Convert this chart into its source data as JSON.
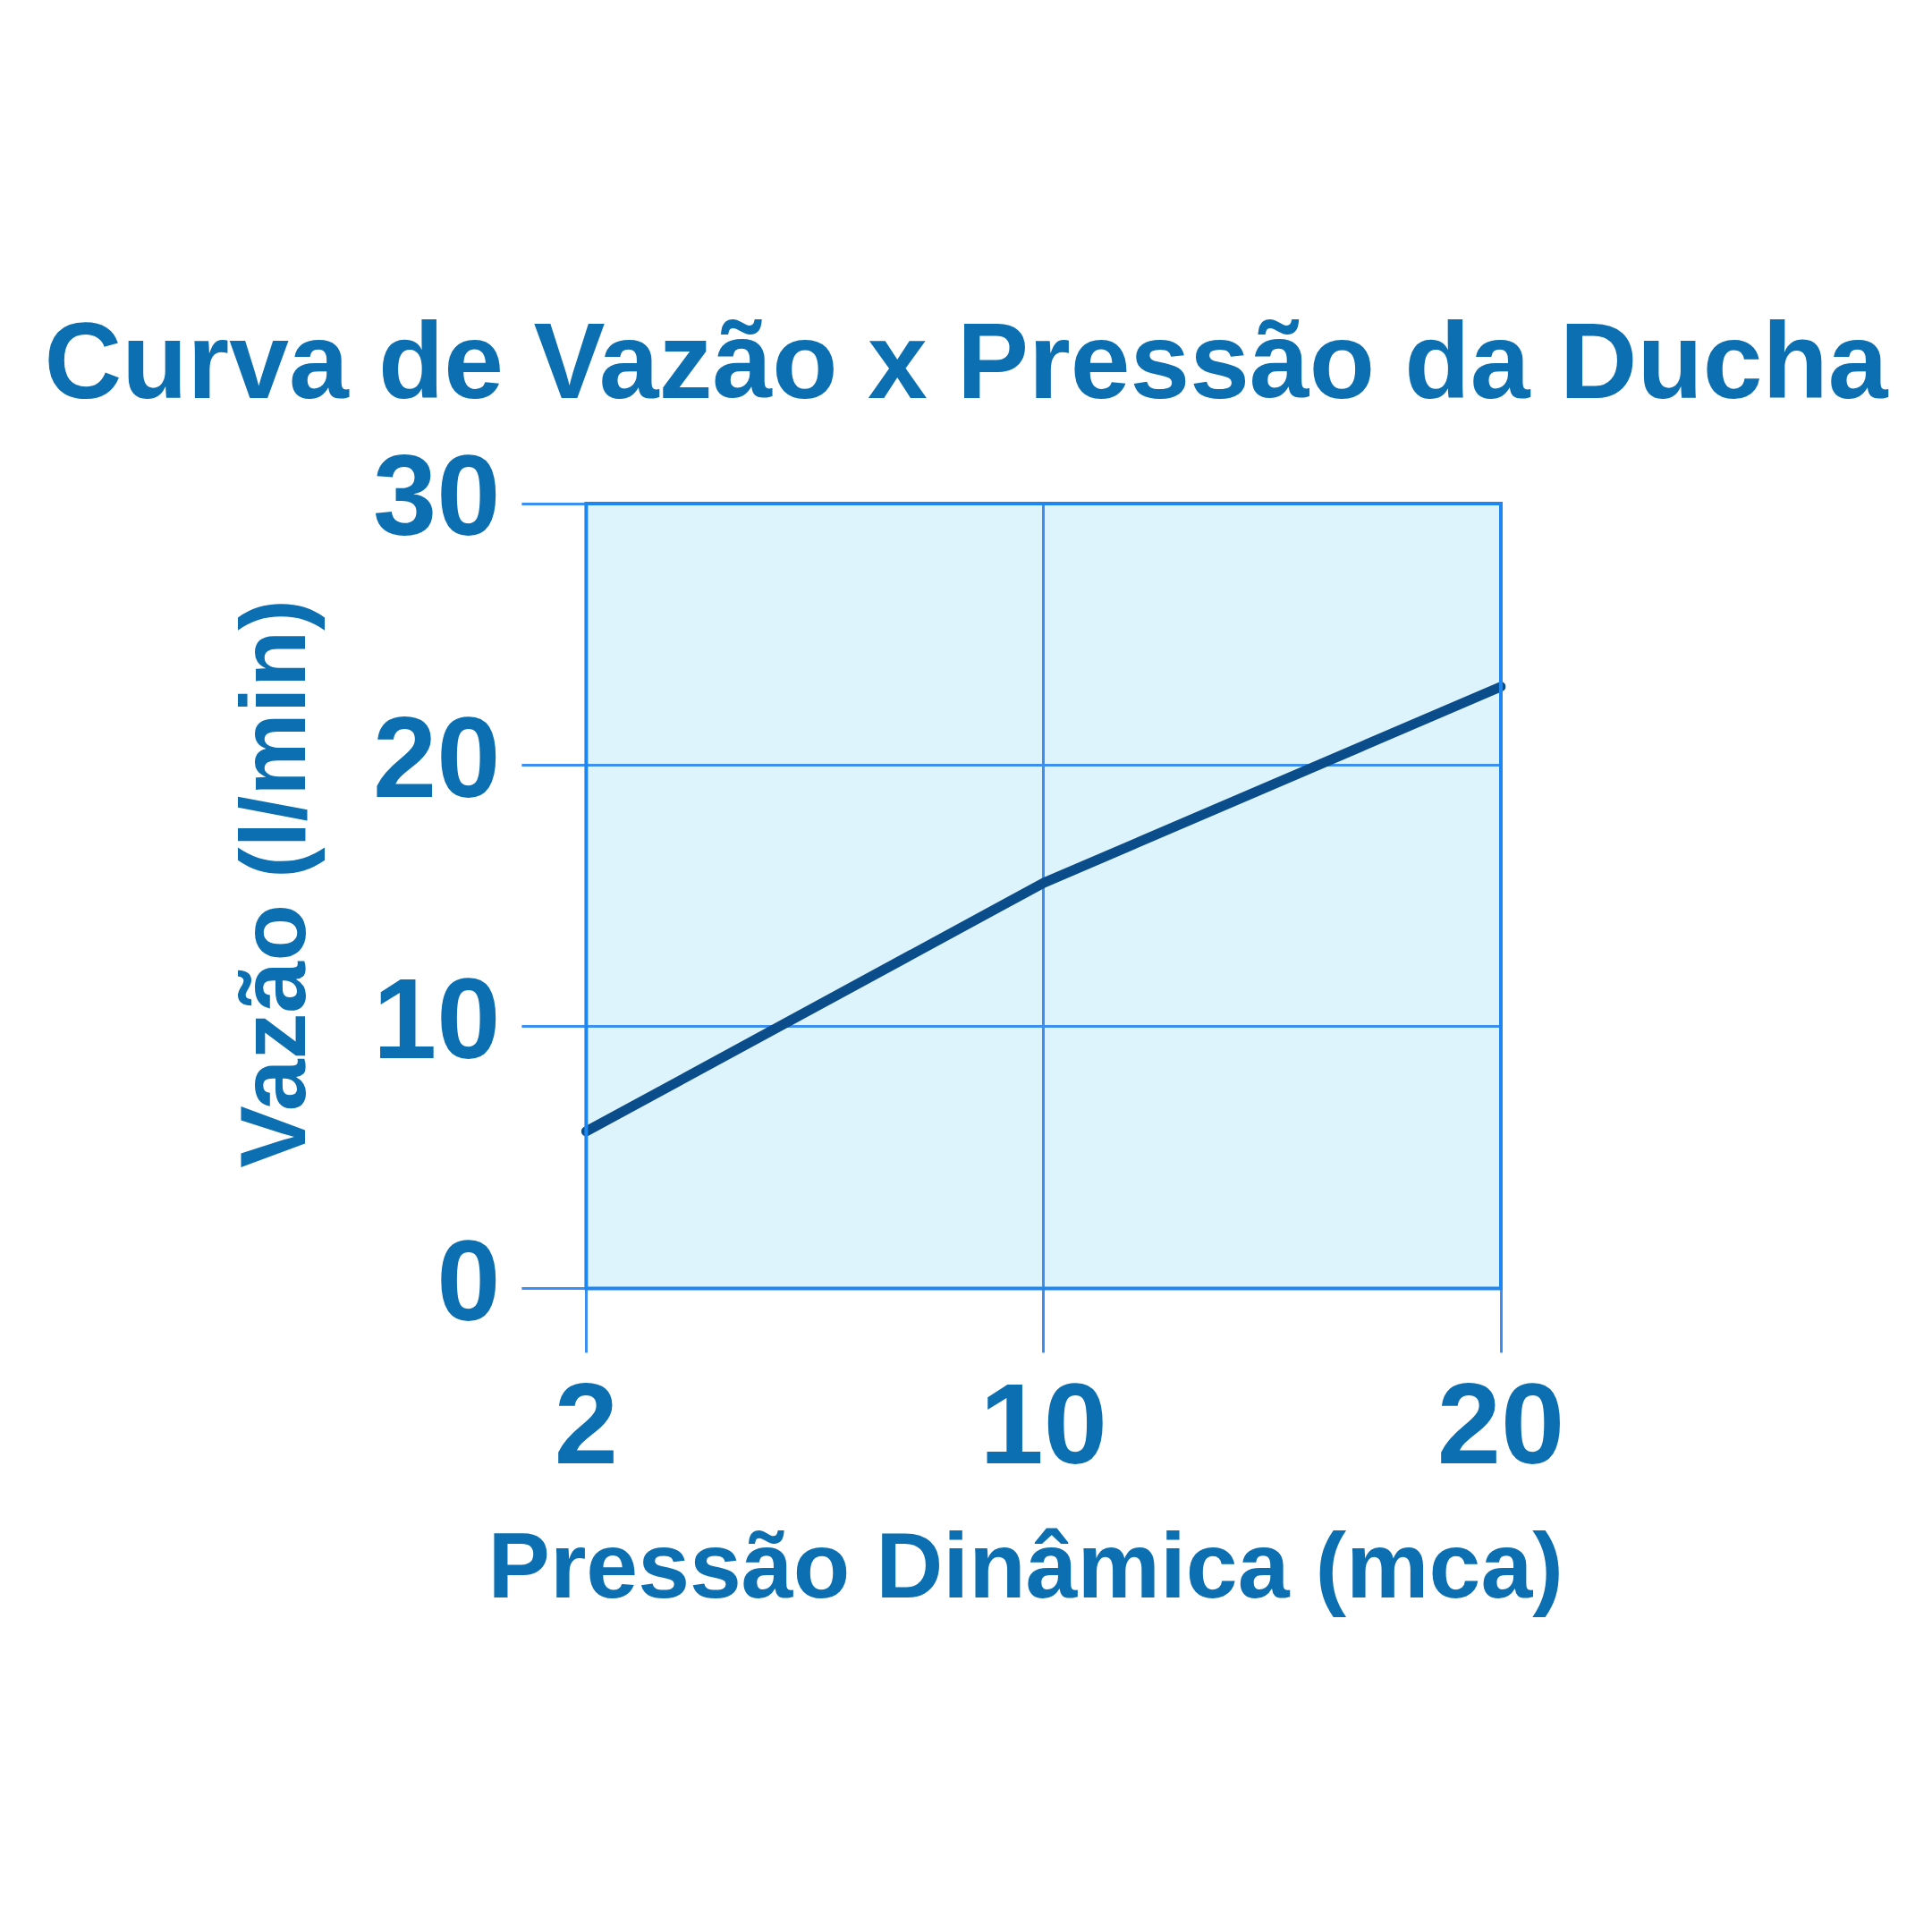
{
  "chart_data": {
    "type": "line",
    "title": "Curva de Vazão x Pressão da Ducha",
    "xlabel": "Pressão Dinâmica (mca)",
    "ylabel": "Vazão (l/min)",
    "categories": [
      "2",
      "10",
      "20"
    ],
    "series": [
      {
        "color": "#0b4d8a",
        "values": [
          6,
          15.5,
          23
        ]
      }
    ],
    "ylim": [
      0,
      30
    ],
    "yticks": [
      0,
      10,
      20,
      30
    ],
    "grid": true,
    "legend": false,
    "marker": "none",
    "line_style": "solid"
  }
}
